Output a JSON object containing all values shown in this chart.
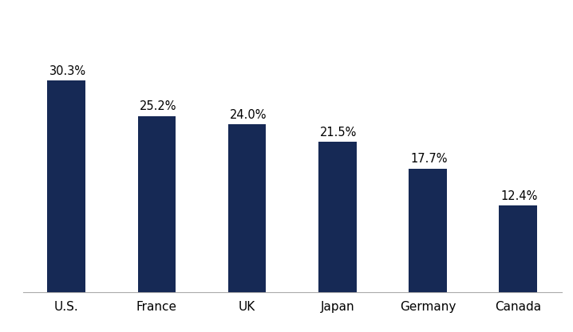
{
  "categories": [
    "U.S.",
    "France",
    "UK",
    "Japan",
    "Germany",
    "Canada"
  ],
  "values": [
    30.3,
    25.2,
    24.0,
    21.5,
    17.7,
    12.4
  ],
  "labels": [
    "30.3%",
    "25.2%",
    "24.0%",
    "21.5%",
    "17.7%",
    "12.4%"
  ],
  "bar_color": "#162955",
  "background_color": "#ffffff",
  "label_fontsize": 10.5,
  "tick_fontsize": 11,
  "ylim": [
    0,
    38
  ],
  "bar_width": 0.42
}
